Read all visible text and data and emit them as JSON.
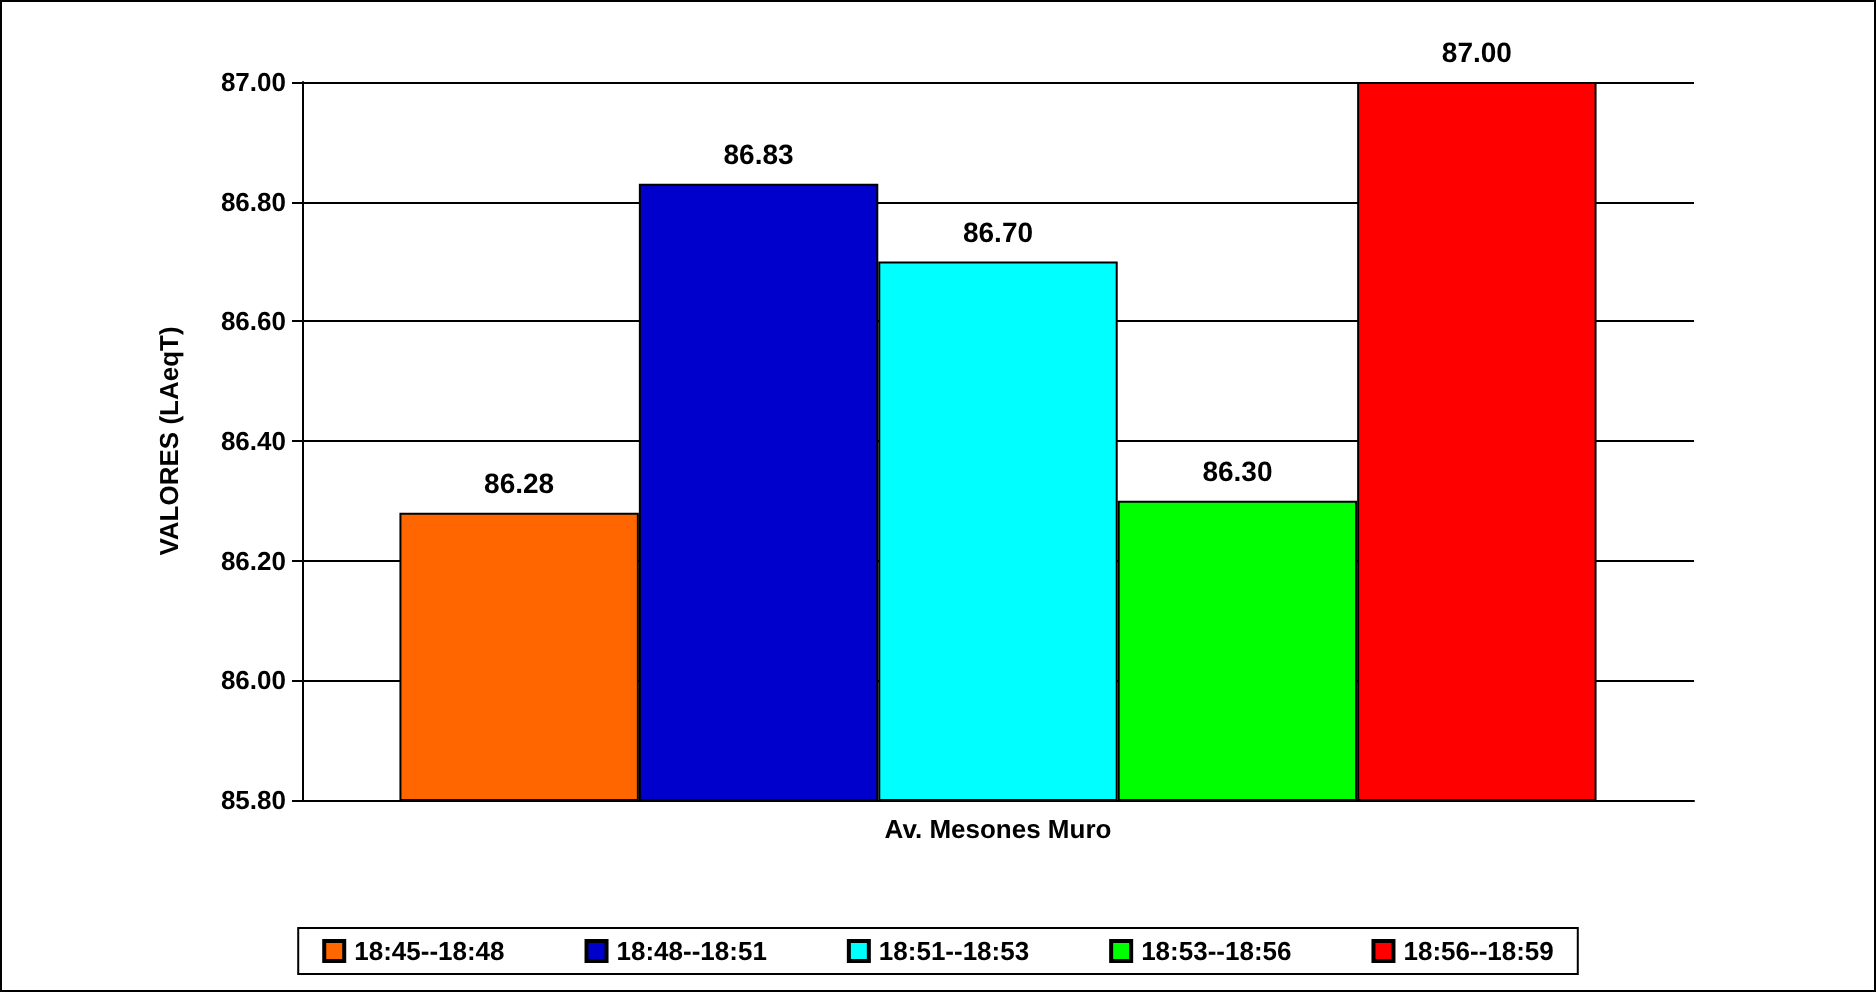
{
  "chart_data": {
    "type": "bar",
    "ylabel": "VALORES (LAeqT)",
    "categories": [
      "Av. Mesones Muro"
    ],
    "series": [
      {
        "name": "18:45--18:48",
        "color": "#ff6600",
        "values": [
          86.28
        ],
        "value_labels": [
          "86.28"
        ]
      },
      {
        "name": "18:48--18:51",
        "color": "#0000cc",
        "values": [
          86.83
        ],
        "value_labels": [
          "86.83"
        ]
      },
      {
        "name": "18:51--18:53",
        "color": "#00ffff",
        "values": [
          86.7
        ],
        "value_labels": [
          "86.70"
        ]
      },
      {
        "name": "18:53--18:56",
        "color": "#00ff00",
        "values": [
          86.3
        ],
        "value_labels": [
          "86.30"
        ]
      },
      {
        "name": "18:56--18:59",
        "color": "#ff0000",
        "values": [
          87.0
        ],
        "value_labels": [
          "87.00"
        ]
      }
    ],
    "ylim": [
      85.8,
      87.0
    ],
    "yticks": [
      {
        "value": 85.8,
        "label": "85.80"
      },
      {
        "value": 86.0,
        "label": "86.00"
      },
      {
        "value": 86.2,
        "label": "86.20"
      },
      {
        "value": 86.4,
        "label": "86.40"
      },
      {
        "value": 86.6,
        "label": "86.60"
      },
      {
        "value": 86.8,
        "label": "86.80"
      },
      {
        "value": 87.0,
        "label": "87.00"
      }
    ],
    "grid": "y",
    "legend": "bottom"
  }
}
